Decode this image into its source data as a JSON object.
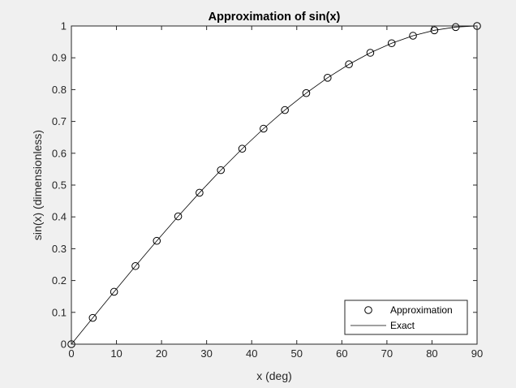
{
  "chart_data": {
    "type": "line",
    "title": "Approximation of sin(x)",
    "xlabel": "x (deg)",
    "ylabel": "sin(x) (dimensionless)",
    "xlim": [
      0,
      90
    ],
    "ylim": [
      0,
      1
    ],
    "xticks": [
      0,
      10,
      20,
      30,
      40,
      50,
      60,
      70,
      80,
      90
    ],
    "xtick_labels": [
      "0",
      "10",
      "20",
      "30",
      "40",
      "50",
      "60",
      "70",
      "80",
      "90"
    ],
    "yticks": [
      0,
      0.1,
      0.2,
      0.3,
      0.4,
      0.5,
      0.6,
      0.7,
      0.8,
      0.9,
      1
    ],
    "ytick_labels": [
      "0",
      "0.1",
      "0.2",
      "0.3",
      "0.4",
      "0.5",
      "0.6",
      "0.7",
      "0.8",
      "0.9",
      "1"
    ],
    "grid": false,
    "legend_location": "bottom-right",
    "series": [
      {
        "name": "Approximation",
        "style": "markers",
        "marker": "circle",
        "color": "#000000",
        "x": [
          0,
          4.737,
          9.474,
          14.211,
          18.947,
          23.684,
          28.421,
          33.158,
          37.895,
          42.632,
          47.368,
          52.105,
          56.842,
          61.579,
          66.316,
          71.053,
          75.789,
          80.526,
          85.263,
          90
        ],
        "y": [
          0,
          0.0826,
          0.1646,
          0.2455,
          0.3247,
          0.4017,
          0.4759,
          0.5469,
          0.6142,
          0.6773,
          0.7357,
          0.7891,
          0.8372,
          0.8795,
          0.9158,
          0.9458,
          0.9694,
          0.9864,
          0.9966,
          1
        ]
      },
      {
        "name": "Exact",
        "style": "line",
        "color": "#000000",
        "x": [
          0,
          4.737,
          9.474,
          14.211,
          18.947,
          23.684,
          28.421,
          33.158,
          37.895,
          42.632,
          47.368,
          52.105,
          56.842,
          61.579,
          66.316,
          71.053,
          75.789,
          80.526,
          85.263,
          90
        ],
        "y": [
          0,
          0.0826,
          0.1646,
          0.2455,
          0.3247,
          0.4017,
          0.4759,
          0.5469,
          0.6142,
          0.6773,
          0.7357,
          0.7891,
          0.8372,
          0.8795,
          0.9158,
          0.9458,
          0.9694,
          0.9864,
          0.9966,
          1
        ]
      }
    ]
  }
}
